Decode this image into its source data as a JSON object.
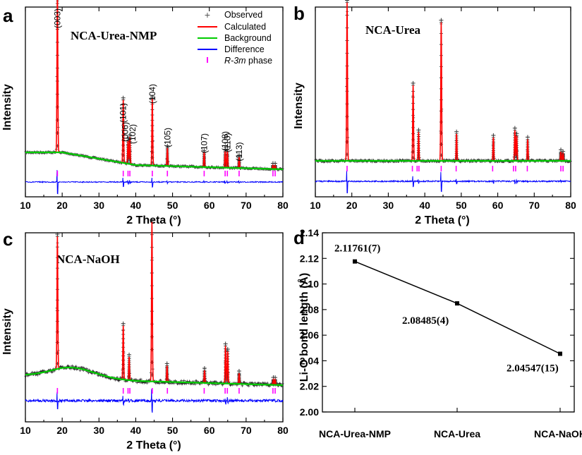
{
  "chart_data": [
    {
      "panel": "a",
      "type": "line",
      "sample_label": "NCA-Urea-NMP",
      "xlabel": "2 Theta (°)",
      "ylabel": "Intensity",
      "xlim": [
        10,
        80
      ],
      "xticks": [
        10,
        20,
        30,
        40,
        50,
        60,
        70,
        80
      ],
      "legend": {
        "position": "top-right",
        "entries": [
          {
            "label": "Observed",
            "marker": "+",
            "color": "#555555"
          },
          {
            "label": "Calculated",
            "color": "#ff0000"
          },
          {
            "label": "Background",
            "color": "#00cc00"
          },
          {
            "label": "Difference",
            "color": "#0000ff"
          },
          {
            "label": "R-3m phase",
            "marker": "|",
            "color": "#ff00ff",
            "italic_part": "R-3m"
          }
        ]
      },
      "peaks": [
        {
          "x": 18.7,
          "h": 0.9,
          "hkl": "(003)"
        },
        {
          "x": 36.6,
          "h": 0.35,
          "hkl": "(101)"
        },
        {
          "x": 37.9,
          "h": 0.13,
          "hkl": "(006)"
        },
        {
          "x": 38.4,
          "h": 0.15,
          "hkl": "(102)"
        },
        {
          "x": 44.5,
          "h": 0.37,
          "hkl": "(104)"
        },
        {
          "x": 48.6,
          "h": 0.1,
          "hkl": "(105)"
        },
        {
          "x": 58.6,
          "h": 0.08,
          "hkl": "(107)"
        },
        {
          "x": 64.3,
          "h": 0.09,
          "hkl": "(108)"
        },
        {
          "x": 64.9,
          "h": 0.09,
          "hkl": "(110)"
        },
        {
          "x": 68.1,
          "h": 0.06,
          "hkl": "(113)"
        },
        {
          "x": 77.3,
          "h": 0.02
        },
        {
          "x": 77.9,
          "h": 0.02
        }
      ]
    },
    {
      "panel": "b",
      "type": "line",
      "sample_label": "NCA-Urea",
      "xlabel": "2 Theta (°)",
      "ylabel": "Intensity",
      "xlim": [
        10,
        80
      ],
      "xticks": [
        10,
        20,
        30,
        40,
        50,
        60,
        70,
        80
      ],
      "peaks": [
        {
          "x": 18.7,
          "h": 0.88
        },
        {
          "x": 36.8,
          "h": 0.42
        },
        {
          "x": 38.3,
          "h": 0.16
        },
        {
          "x": 44.5,
          "h": 0.77
        },
        {
          "x": 48.7,
          "h": 0.15
        },
        {
          "x": 58.8,
          "h": 0.13
        },
        {
          "x": 64.7,
          "h": 0.17
        },
        {
          "x": 65.2,
          "h": 0.14
        },
        {
          "x": 68.2,
          "h": 0.12
        },
        {
          "x": 77.3,
          "h": 0.05
        },
        {
          "x": 77.9,
          "h": 0.04
        }
      ]
    },
    {
      "panel": "c",
      "type": "line",
      "sample_label": "NCA-NaOH",
      "xlabel": "2 Theta (°)",
      "ylabel": "Intensity",
      "xlim": [
        10,
        80
      ],
      "xticks": [
        10,
        20,
        30,
        40,
        50,
        60,
        70,
        80
      ],
      "peaks": [
        {
          "x": 18.7,
          "h": 0.74
        },
        {
          "x": 36.6,
          "h": 0.3
        },
        {
          "x": 38.2,
          "h": 0.13
        },
        {
          "x": 44.4,
          "h": 0.89
        },
        {
          "x": 48.5,
          "h": 0.09
        },
        {
          "x": 58.7,
          "h": 0.07
        },
        {
          "x": 64.4,
          "h": 0.21
        },
        {
          "x": 65.0,
          "h": 0.18
        },
        {
          "x": 68.1,
          "h": 0.06
        },
        {
          "x": 77.4,
          "h": 0.03
        },
        {
          "x": 77.9,
          "h": 0.03
        }
      ]
    },
    {
      "panel": "d",
      "type": "line",
      "xlabel": "",
      "ylabel": "Li-O bond length (Å)",
      "categories": [
        "NCA-Urea-NMP",
        "NCA-Urea",
        "NCA-NaOH"
      ],
      "values": [
        2.11761,
        2.08485,
        2.04547
      ],
      "data_labels": [
        "2.11761(7)",
        "2.08485(4)",
        "2.04547(15)"
      ],
      "ylim": [
        2.0,
        2.14
      ],
      "yticks": [
        "2.00",
        "2.02",
        "2.04",
        "2.06",
        "2.08",
        "2.10",
        "2.12",
        "2.14"
      ]
    }
  ]
}
